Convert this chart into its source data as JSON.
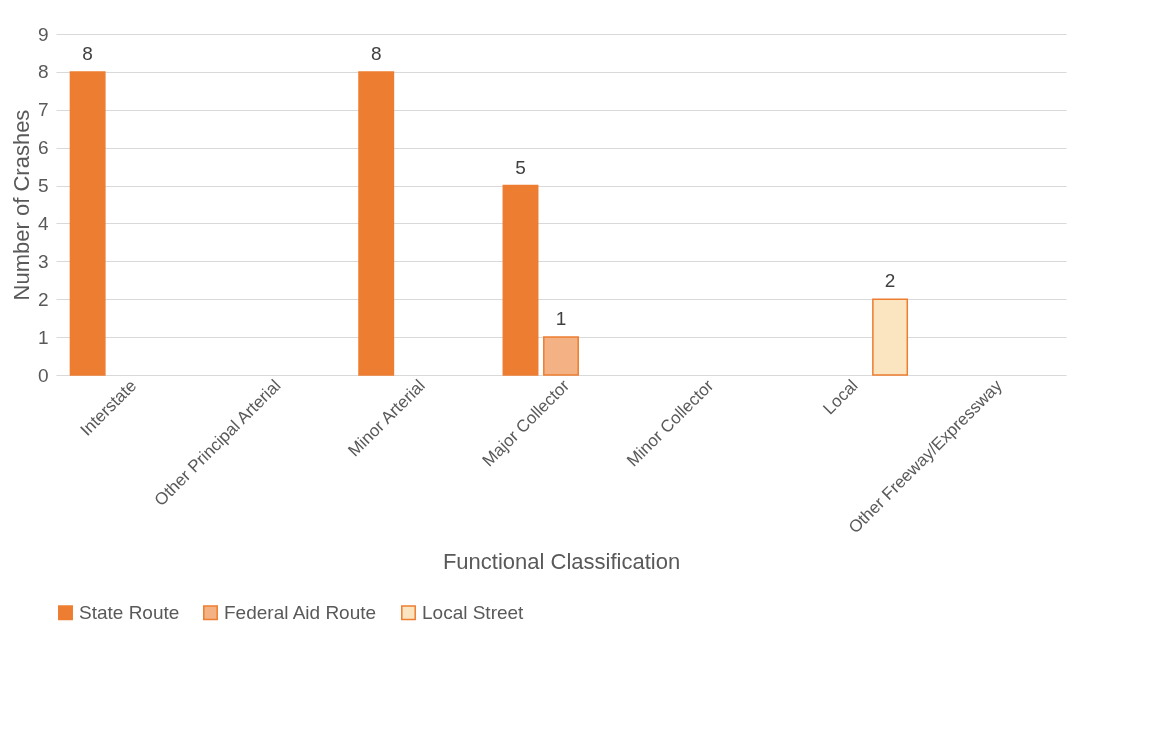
{
  "chart_data": {
    "type": "bar",
    "xlabel": "Functional Classification",
    "ylabel": "Number of Crashes",
    "categories": [
      "Interstate",
      "Other Principal Arterial",
      "Minor Arterial",
      "Major Collector",
      "Minor Collector",
      "Local",
      "Other Freeway/Expressway"
    ],
    "series": [
      {
        "name": "State Route",
        "color": "#ed7d31",
        "values": [
          8,
          null,
          8,
          5,
          null,
          null,
          null
        ]
      },
      {
        "name": "Federal Aid Route",
        "color": "#f4b183",
        "values": [
          null,
          null,
          null,
          1,
          null,
          null,
          null
        ]
      },
      {
        "name": "Local Street",
        "color": "#fbe5c0",
        "values": [
          null,
          null,
          null,
          null,
          null,
          2,
          null
        ]
      }
    ],
    "ylim": [
      0,
      9
    ],
    "yticks": [
      0,
      1,
      2,
      3,
      4,
      5,
      6,
      7,
      8,
      9
    ],
    "grid": "y",
    "legend": "bottom",
    "data_labels": true
  }
}
